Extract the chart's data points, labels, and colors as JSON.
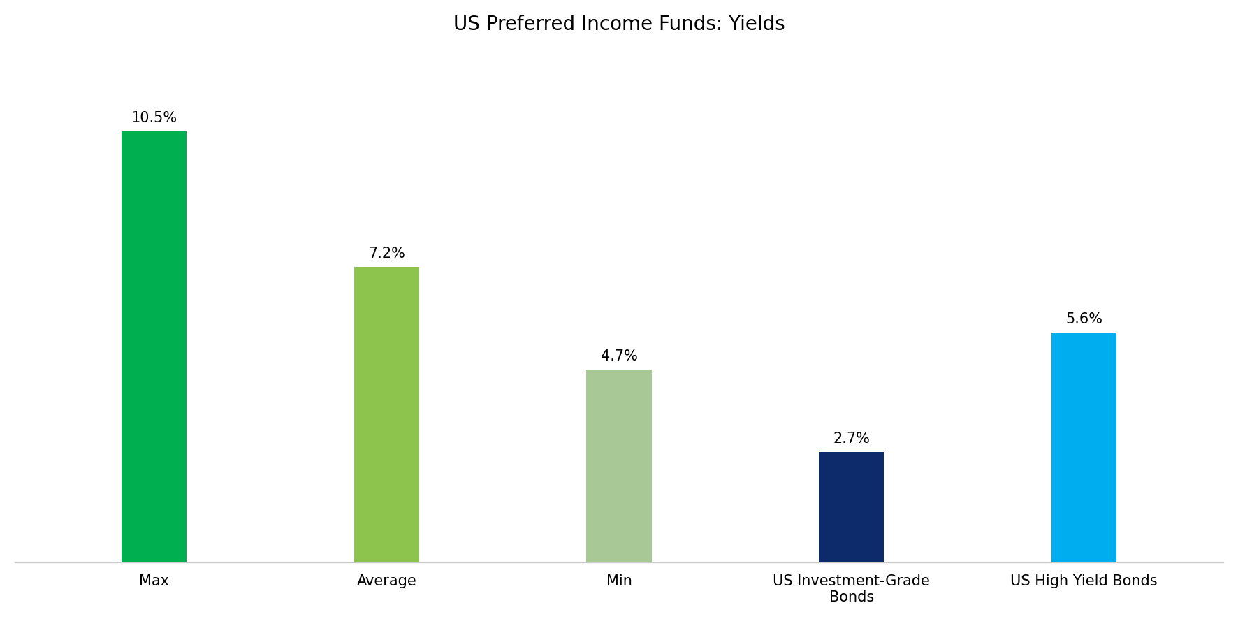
{
  "title": "US Preferred Income Funds: Yields",
  "categories": [
    "Max",
    "Average",
    "Min",
    "US Investment-Grade\nBonds",
    "US High Yield Bonds"
  ],
  "values": [
    10.5,
    7.2,
    4.7,
    2.7,
    5.6
  ],
  "bar_colors": [
    "#00B050",
    "#8DC44E",
    "#A8C896",
    "#0D2B6B",
    "#00AEEF"
  ],
  "value_labels": [
    "10.5%",
    "7.2%",
    "4.7%",
    "2.7%",
    "5.6%"
  ],
  "ylim": [
    0,
    12.5
  ],
  "title_fontsize": 20,
  "label_fontsize": 15,
  "bar_width": 0.28,
  "background_color": "#ffffff",
  "spine_color": "#cccccc"
}
